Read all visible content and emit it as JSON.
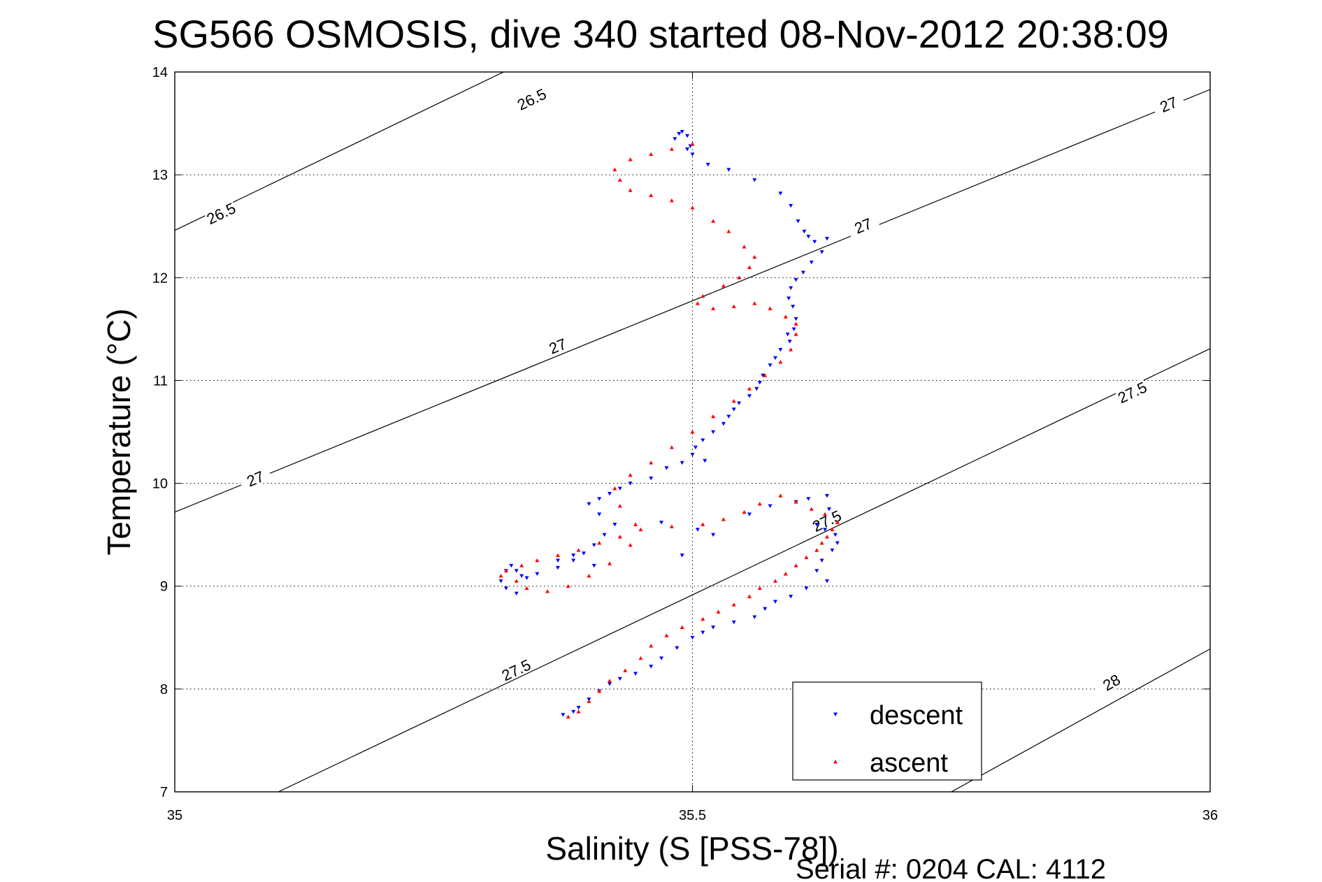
{
  "chart_data": {
    "type": "scatter",
    "title": "SG566 OSMOSIS, dive 340 started 08-Nov-2012 20:38:09",
    "xlabel": "Salinity (S [PSS-78])",
    "ylabel": "Temperature (°C)",
    "xlim": [
      35,
      36
    ],
    "ylim": [
      7,
      14
    ],
    "x_ticks": [
      35,
      35.5,
      36
    ],
    "x_tick_labels": [
      "35",
      "35.5",
      "36"
    ],
    "y_ticks": [
      7,
      8,
      9,
      10,
      11,
      12,
      13,
      14
    ],
    "y_tick_labels": [
      "7",
      "8",
      "9",
      "10",
      "11",
      "12",
      "13",
      "14"
    ],
    "grid": true,
    "legend_position": "bottom-right",
    "colors": {
      "descent": "#0000ff",
      "ascent": "#ff0000"
    },
    "density_contours": [
      {
        "level": 26.5,
        "label": "26.5",
        "points": [
          [
            35.0,
            12.46
          ],
          [
            35.4,
            14.4
          ]
        ],
        "label_positions": [
          [
            35.045,
            12.62
          ],
          [
            35.345,
            13.73
          ]
        ]
      },
      {
        "level": 27,
        "label": "27",
        "points": [
          [
            35.0,
            9.72
          ],
          [
            36.0,
            13.83
          ]
        ],
        "label_positions": [
          [
            35.078,
            10.04
          ],
          [
            35.37,
            11.33
          ],
          [
            35.665,
            12.5
          ],
          [
            35.96,
            13.68
          ]
        ]
      },
      {
        "level": 27.5,
        "label": "27.5",
        "points": [
          [
            35.1,
            7.0
          ],
          [
            36.0,
            11.31
          ]
        ],
        "label_positions": [
          [
            35.33,
            8.18
          ],
          [
            35.63,
            9.63
          ],
          [
            35.925,
            10.88
          ]
        ]
      },
      {
        "level": 28,
        "label": "28",
        "points": [
          [
            35.75,
            7.0
          ],
          [
            36.0,
            8.39
          ]
        ],
        "label_positions": [
          [
            35.905,
            8.06
          ]
        ]
      }
    ],
    "series": [
      {
        "name": "descent",
        "marker": "triangle-down",
        "x": [
          35.49,
          35.487,
          35.483,
          35.495,
          35.498,
          35.495,
          35.5,
          35.515,
          35.535,
          35.56,
          35.585,
          35.595,
          35.602,
          35.608,
          35.612,
          35.618,
          35.63,
          35.625,
          35.615,
          35.607,
          35.6,
          35.595,
          35.593,
          35.597,
          35.6,
          35.598,
          35.592,
          35.594,
          35.585,
          35.58,
          35.575,
          35.568,
          35.565,
          35.562,
          35.555,
          35.545,
          35.54,
          35.535,
          35.53,
          35.52,
          35.51,
          35.503,
          35.5,
          35.512,
          35.49,
          35.475,
          35.46,
          35.44,
          35.43,
          35.42,
          35.41,
          35.4,
          35.41,
          35.425,
          35.415,
          35.405,
          35.395,
          35.385,
          35.37,
          35.35,
          35.34,
          35.335,
          35.33,
          35.325,
          35.32,
          35.315,
          35.32,
          35.33,
          35.37,
          35.385,
          35.405,
          35.49,
          35.505,
          35.47,
          35.52,
          35.555,
          35.575,
          35.6,
          35.612,
          35.63,
          35.632,
          35.62,
          35.628,
          35.638,
          35.64,
          35.635,
          35.625,
          35.62,
          35.63,
          35.61,
          35.595,
          35.58,
          35.57,
          35.56,
          35.54,
          35.52,
          35.51,
          35.5,
          35.485,
          35.47,
          35.46,
          35.445,
          35.43,
          35.42,
          35.41,
          35.4,
          35.39,
          35.385,
          35.375
        ],
        "y": [
          13.42,
          13.4,
          13.35,
          13.38,
          13.28,
          13.25,
          13.2,
          13.1,
          13.05,
          12.95,
          12.82,
          12.7,
          12.55,
          12.45,
          12.4,
          12.35,
          12.38,
          12.25,
          12.15,
          12.05,
          11.98,
          11.9,
          11.8,
          11.72,
          11.6,
          11.5,
          11.45,
          11.38,
          11.3,
          11.22,
          11.15,
          11.05,
          10.98,
          10.92,
          10.85,
          10.78,
          10.72,
          10.65,
          10.58,
          10.5,
          10.42,
          10.35,
          10.28,
          10.22,
          10.2,
          10.15,
          10.05,
          10.0,
          9.95,
          9.9,
          9.85,
          9.8,
          9.7,
          9.6,
          9.5,
          9.4,
          9.32,
          9.25,
          9.18,
          9.12,
          9.08,
          9.1,
          9.15,
          9.2,
          9.15,
          9.05,
          8.98,
          8.93,
          9.25,
          9.3,
          9.2,
          9.3,
          9.55,
          9.62,
          9.5,
          9.7,
          9.78,
          9.82,
          9.85,
          9.88,
          9.75,
          9.6,
          9.55,
          9.5,
          9.42,
          9.35,
          9.25,
          9.15,
          9.05,
          8.98,
          8.9,
          8.85,
          8.78,
          8.7,
          8.65,
          8.6,
          8.55,
          8.5,
          8.4,
          8.3,
          8.22,
          8.15,
          8.1,
          8.05,
          7.98,
          7.9,
          7.82,
          7.78,
          7.75
        ]
      },
      {
        "name": "ascent",
        "marker": "triangle-up",
        "x": [
          35.38,
          35.39,
          35.4,
          35.41,
          35.42,
          35.435,
          35.45,
          35.46,
          35.475,
          35.49,
          35.51,
          35.525,
          35.54,
          35.555,
          35.565,
          35.58,
          35.59,
          35.6,
          35.61,
          35.62,
          35.625,
          35.63,
          35.635,
          35.64,
          35.628,
          35.615,
          35.6,
          35.585,
          35.565,
          35.55,
          35.53,
          35.51,
          35.48,
          35.45,
          35.43,
          35.41,
          35.39,
          35.37,
          35.35,
          35.335,
          35.32,
          35.315,
          35.33,
          35.34,
          35.36,
          35.38,
          35.4,
          35.42,
          35.44,
          35.445,
          35.43,
          35.425,
          35.44,
          35.46,
          35.48,
          35.5,
          35.52,
          35.54,
          35.555,
          35.57,
          35.585,
          35.595,
          35.6,
          35.6,
          35.59,
          35.575,
          35.56,
          35.54,
          35.52,
          35.505,
          35.51,
          35.53,
          35.545,
          35.555,
          35.56,
          35.55,
          35.535,
          35.52,
          35.5,
          35.48,
          35.46,
          35.44,
          35.43,
          35.425,
          35.44,
          35.46,
          35.48,
          35.5
        ],
        "y": [
          7.73,
          7.78,
          7.88,
          7.98,
          8.08,
          8.18,
          8.3,
          8.42,
          8.52,
          8.6,
          8.68,
          8.75,
          8.82,
          8.9,
          8.98,
          9.05,
          9.12,
          9.2,
          9.28,
          9.35,
          9.42,
          9.48,
          9.55,
          9.62,
          9.7,
          9.75,
          9.82,
          9.88,
          9.8,
          9.72,
          9.65,
          9.6,
          9.58,
          9.55,
          9.48,
          9.42,
          9.35,
          9.3,
          9.25,
          9.2,
          9.15,
          9.1,
          9.05,
          8.98,
          8.95,
          9.0,
          9.1,
          9.22,
          9.4,
          9.6,
          9.78,
          9.95,
          10.08,
          10.2,
          10.35,
          10.5,
          10.65,
          10.8,
          10.92,
          11.05,
          11.18,
          11.3,
          11.45,
          11.55,
          11.62,
          11.7,
          11.75,
          11.72,
          11.7,
          11.75,
          11.82,
          11.92,
          12.0,
          12.1,
          12.2,
          12.3,
          12.45,
          12.55,
          12.68,
          12.75,
          12.8,
          12.85,
          12.95,
          13.05,
          13.15,
          13.2,
          13.25,
          13.3
        ]
      }
    ],
    "legend": {
      "items": [
        "descent",
        "ascent"
      ]
    }
  },
  "footer": {
    "serial_text": "Serial #: 0204  CAL: 4112"
  }
}
